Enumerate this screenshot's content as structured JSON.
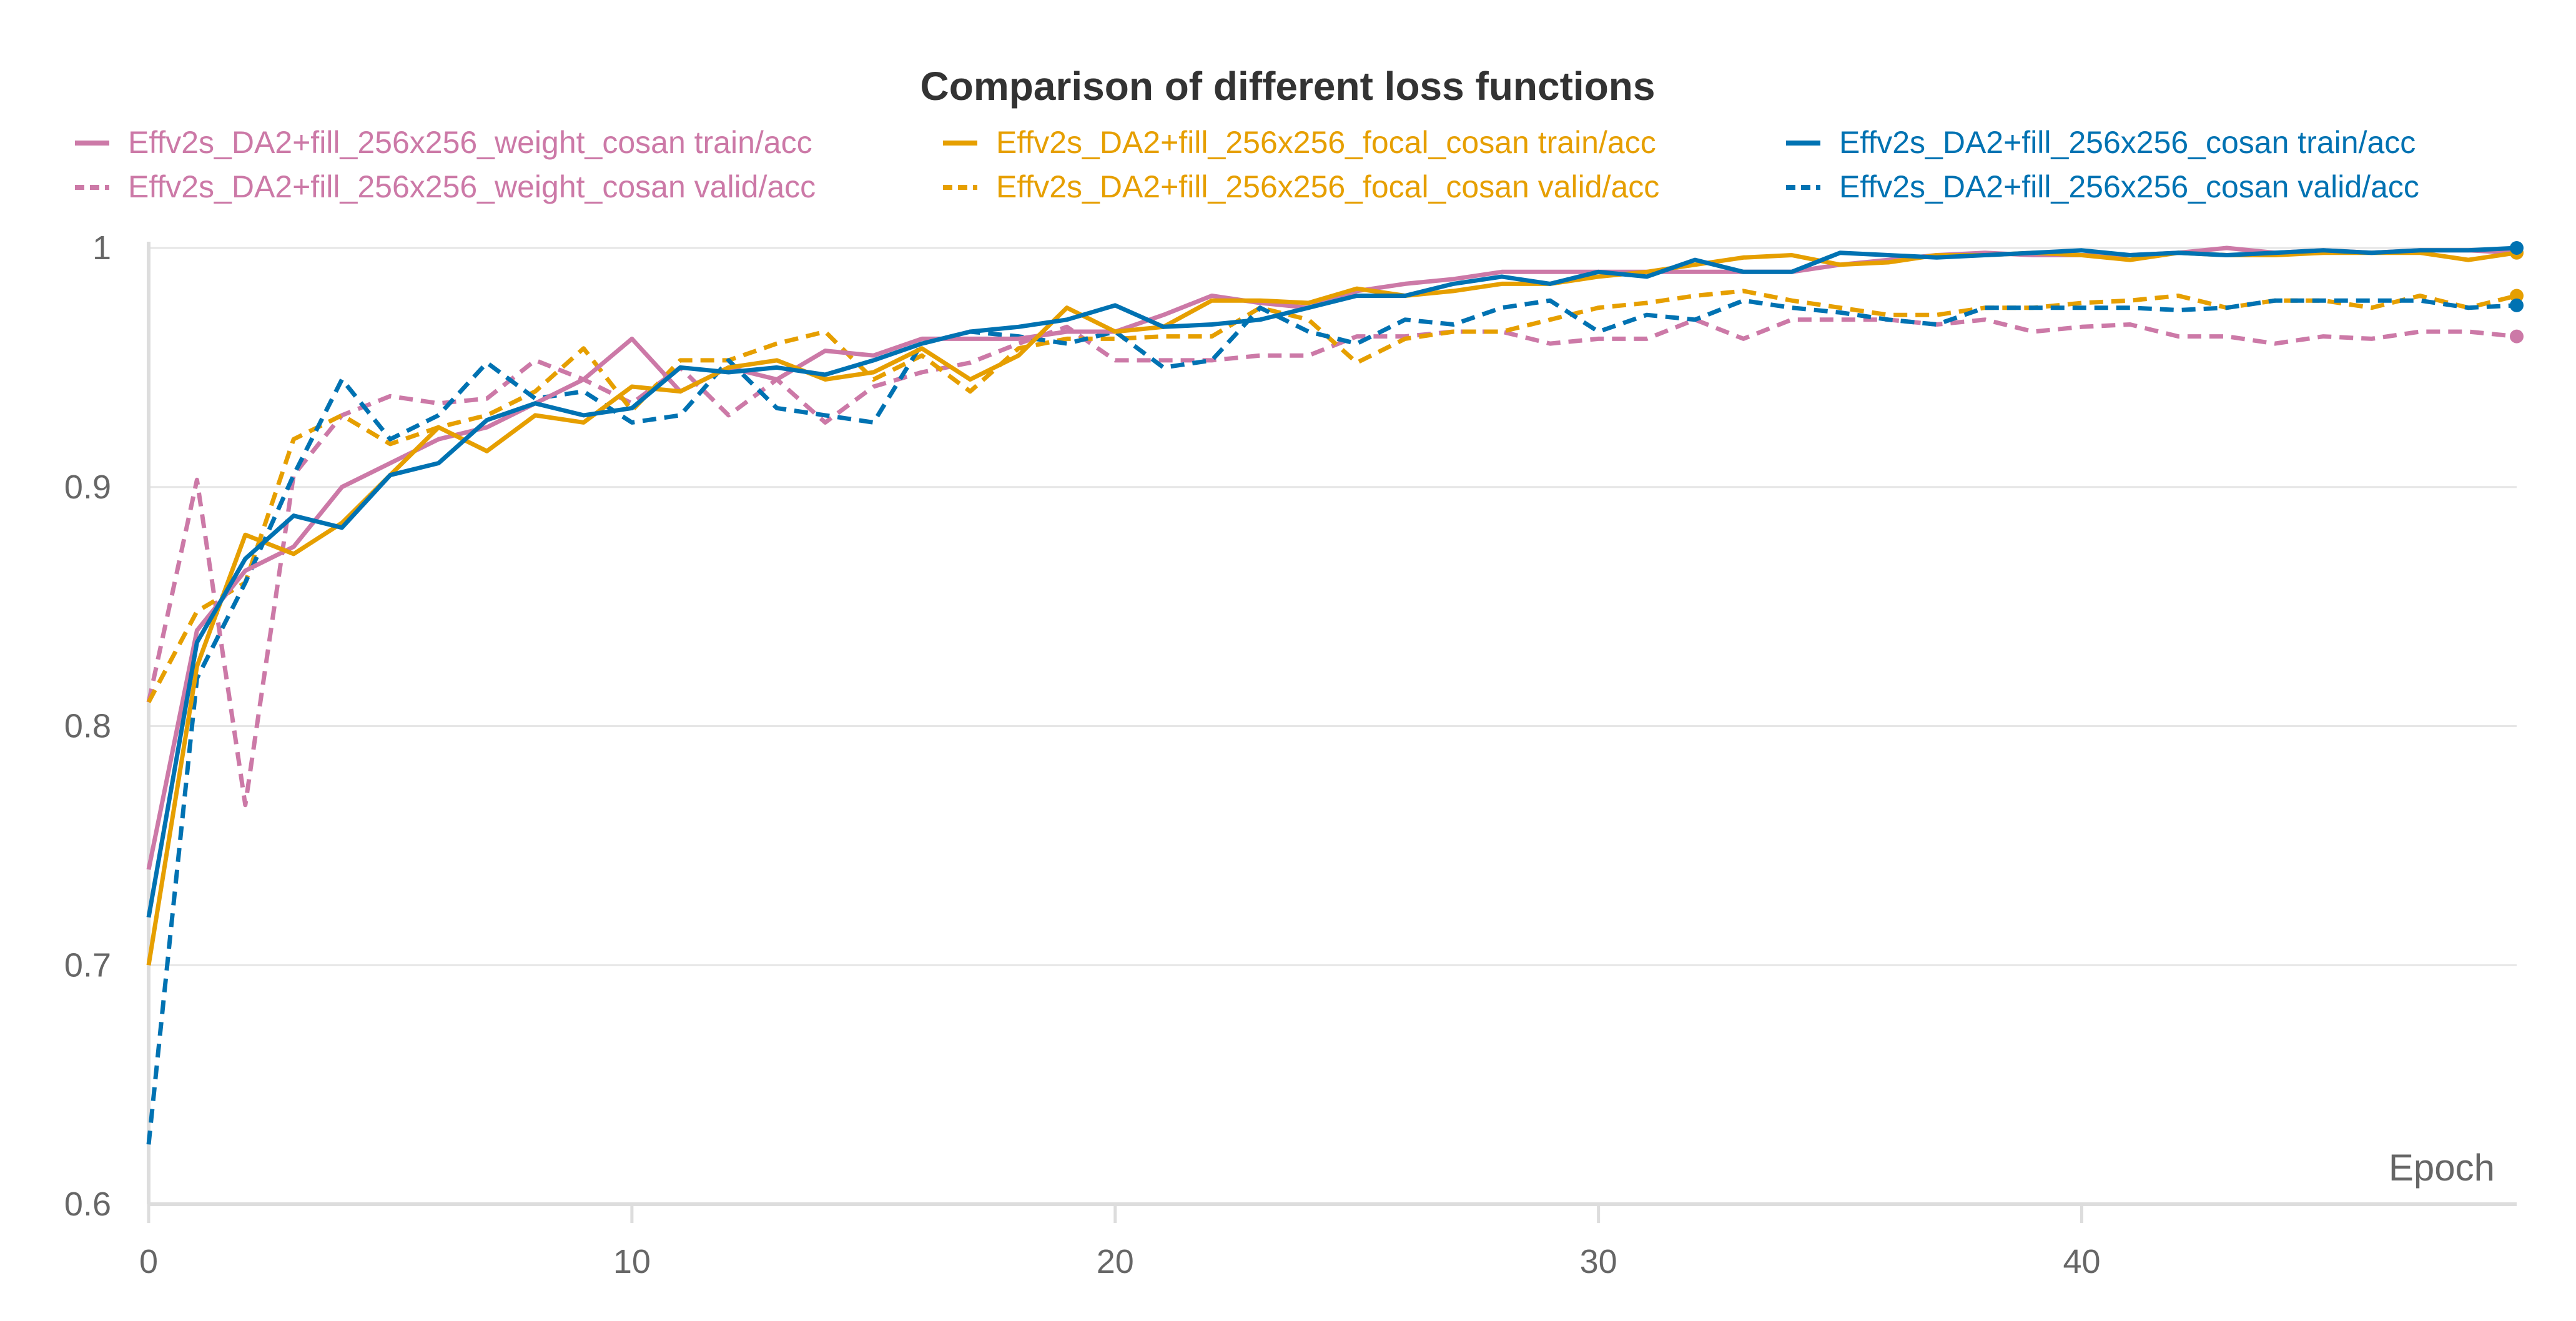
{
  "chart_data": {
    "type": "line",
    "title": "Comparison of different loss functions",
    "xlabel": "Epoch",
    "ylabel": "",
    "xlim": [
      0,
      49
    ],
    "ylim": [
      0.6,
      1.0
    ],
    "xticks": [
      0,
      10,
      20,
      30,
      40
    ],
    "yticks": [
      0.6,
      0.7,
      0.8,
      0.9,
      1.0
    ],
    "ytick_labels": [
      "0.6",
      "0.7",
      "0.8",
      "0.9",
      "1"
    ],
    "grid": "horizontal",
    "legend_position": "top",
    "series": [
      {
        "name": "Effv2s_DA2+fill_256x256_weight_cosan train/acc",
        "color": "#cc79a7",
        "dash": "solid",
        "values": [
          0.74,
          0.84,
          0.865,
          0.875,
          0.9,
          0.91,
          0.92,
          0.925,
          0.935,
          0.945,
          0.962,
          0.94,
          0.95,
          0.945,
          0.957,
          0.955,
          0.962,
          0.962,
          0.962,
          0.965,
          0.965,
          0.972,
          0.98,
          0.977,
          0.975,
          0.982,
          0.985,
          0.987,
          0.99,
          0.99,
          0.99,
          0.99,
          0.99,
          0.99,
          0.99,
          0.993,
          0.995,
          0.997,
          0.998,
          0.997,
          0.997,
          0.997,
          0.998,
          1.0,
          0.998,
          0.999,
          0.998,
          0.999,
          0.999,
          0.998
        ]
      },
      {
        "name": "Effv2s_DA2+fill_256x256_weight_cosan valid/acc",
        "color": "#cc79a7",
        "dash": "dashed",
        "values": [
          0.81,
          0.903,
          0.767,
          0.905,
          0.93,
          0.938,
          0.935,
          0.937,
          0.953,
          0.945,
          0.935,
          0.95,
          0.93,
          0.945,
          0.927,
          0.942,
          0.948,
          0.952,
          0.96,
          0.967,
          0.953,
          0.953,
          0.953,
          0.955,
          0.955,
          0.963,
          0.963,
          0.965,
          0.965,
          0.96,
          0.962,
          0.962,
          0.97,
          0.962,
          0.97,
          0.97,
          0.97,
          0.968,
          0.97,
          0.965,
          0.967,
          0.968,
          0.963,
          0.963,
          0.96,
          0.963,
          0.962,
          0.965,
          0.965,
          0.963
        ]
      },
      {
        "name": "Effv2s_DA2+fill_256x256_focal_cosan train/acc",
        "color": "#e69f00",
        "dash": "solid",
        "values": [
          0.7,
          0.825,
          0.88,
          0.872,
          0.885,
          0.905,
          0.925,
          0.915,
          0.93,
          0.927,
          0.942,
          0.94,
          0.95,
          0.953,
          0.945,
          0.948,
          0.958,
          0.945,
          0.955,
          0.975,
          0.965,
          0.967,
          0.978,
          0.978,
          0.977,
          0.983,
          0.98,
          0.982,
          0.985,
          0.985,
          0.988,
          0.99,
          0.993,
          0.996,
          0.997,
          0.993,
          0.994,
          0.997,
          0.997,
          0.998,
          0.997,
          0.995,
          0.998,
          0.997,
          0.997,
          0.998,
          0.998,
          0.998,
          0.995,
          0.998
        ]
      },
      {
        "name": "Effv2s_DA2+fill_256x256_focal_cosan valid/acc",
        "color": "#e69f00",
        "dash": "dashed",
        "values": [
          0.81,
          0.848,
          0.86,
          0.92,
          0.93,
          0.918,
          0.925,
          0.93,
          0.94,
          0.958,
          0.932,
          0.953,
          0.953,
          0.96,
          0.965,
          0.945,
          0.955,
          0.94,
          0.958,
          0.962,
          0.962,
          0.963,
          0.963,
          0.975,
          0.97,
          0.952,
          0.962,
          0.965,
          0.965,
          0.97,
          0.975,
          0.977,
          0.98,
          0.982,
          0.978,
          0.975,
          0.972,
          0.972,
          0.975,
          0.975,
          0.977,
          0.978,
          0.98,
          0.975,
          0.978,
          0.978,
          0.975,
          0.98,
          0.975,
          0.98
        ]
      },
      {
        "name": "Effv2s_DA2+fill_256x256_cosan train/acc",
        "color": "#0072b2",
        "dash": "solid",
        "values": [
          0.72,
          0.835,
          0.87,
          0.888,
          0.883,
          0.905,
          0.91,
          0.928,
          0.935,
          0.93,
          0.933,
          0.95,
          0.948,
          0.95,
          0.947,
          0.953,
          0.96,
          0.965,
          0.967,
          0.97,
          0.976,
          0.967,
          0.968,
          0.97,
          0.975,
          0.98,
          0.98,
          0.985,
          0.988,
          0.985,
          0.99,
          0.988,
          0.995,
          0.99,
          0.99,
          0.998,
          0.997,
          0.996,
          0.997,
          0.998,
          0.999,
          0.997,
          0.998,
          0.997,
          0.998,
          0.999,
          0.998,
          0.999,
          0.999,
          1.0
        ]
      },
      {
        "name": "Effv2s_DA2+fill_256x256_cosan valid/acc",
        "color": "#0072b2",
        "dash": "dashed",
        "values": [
          0.625,
          0.82,
          0.86,
          0.905,
          0.945,
          0.92,
          0.93,
          0.952,
          0.937,
          0.94,
          0.927,
          0.93,
          0.953,
          0.933,
          0.93,
          0.927,
          0.96,
          0.965,
          0.963,
          0.96,
          0.965,
          0.95,
          0.953,
          0.975,
          0.965,
          0.96,
          0.97,
          0.968,
          0.975,
          0.978,
          0.965,
          0.972,
          0.97,
          0.978,
          0.975,
          0.973,
          0.97,
          0.968,
          0.975,
          0.975,
          0.975,
          0.975,
          0.974,
          0.975,
          0.978,
          0.978,
          0.978,
          0.978,
          0.975,
          0.976
        ]
      }
    ]
  }
}
